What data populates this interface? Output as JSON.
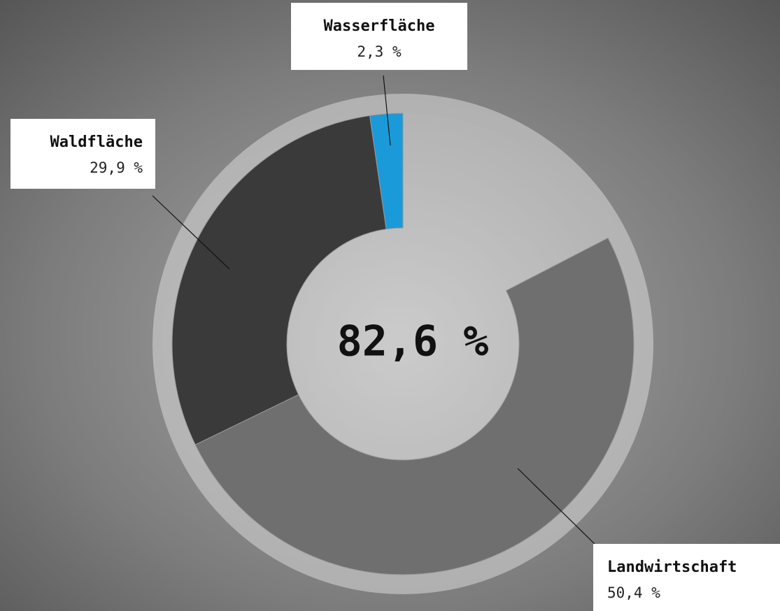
{
  "chart_data": {
    "type": "donut",
    "categories": [
      "Wasserfläche",
      "Waldfläche",
      "Landwirtschaft"
    ],
    "values": [
      2.3,
      29.9,
      50.4
    ],
    "value_labels": [
      "2,3 %",
      "29,9 %",
      "50,4 %"
    ],
    "colors": [
      "#1a9ad8",
      "#3a3a3a",
      "#6f6f6f"
    ],
    "center_label": "82,6 %"
  }
}
